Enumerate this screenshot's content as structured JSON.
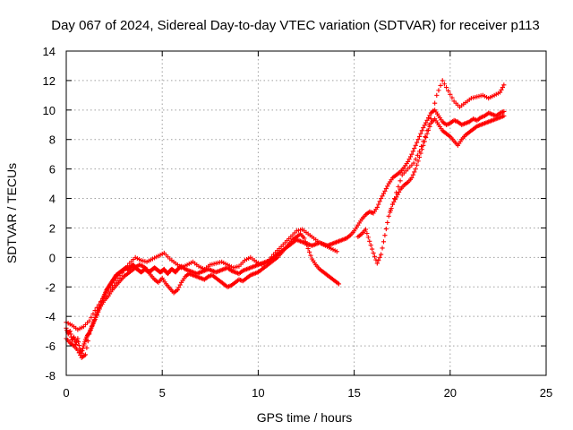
{
  "chart_data": {
    "type": "scatter",
    "title": "Day 067 of 2024, Sidereal Day-to-day VTEC variation (SDTVAR) for receiver p113",
    "xlabel": "GPS time / hours",
    "ylabel": "SDTVAR / TECUs",
    "xlim": [
      0,
      25
    ],
    "ylim": [
      -8,
      14
    ],
    "x_ticks": [
      "0",
      "5",
      "10",
      "15",
      "20",
      "25"
    ],
    "y_ticks": [
      "-8",
      "-6",
      "-4",
      "-2",
      "0",
      "2",
      "4",
      "6",
      "8",
      "10",
      "12",
      "14"
    ],
    "grid": true,
    "marker": "+",
    "color": "#ff0000",
    "series": [
      {
        "x": [
          0.0,
          0.1,
          0.2,
          0.3,
          0.4,
          0.5,
          0.6,
          0.7,
          0.8,
          0.9,
          1.0,
          1.1,
          1.2,
          1.3,
          1.4,
          1.5,
          1.6,
          1.7,
          1.8,
          1.9,
          2.0,
          2.1,
          2.2,
          2.3,
          2.4,
          2.5,
          2.6,
          2.7,
          2.8,
          2.9,
          3.0,
          3.1,
          3.2,
          3.3,
          3.4,
          3.5,
          3.6,
          3.7,
          3.8,
          3.9,
          4.0,
          4.1,
          4.2,
          4.3,
          4.4,
          4.5,
          4.6,
          4.7,
          4.8,
          4.9,
          5.0,
          5.1,
          5.2,
          5.3,
          5.4,
          5.5,
          5.6,
          5.7,
          5.8,
          5.9,
          6.0,
          6.2,
          6.4,
          6.6,
          6.8,
          7.0,
          7.2,
          7.4,
          7.6,
          7.8,
          8.0,
          8.2,
          8.4,
          8.6,
          8.8,
          9.0,
          9.2,
          9.4,
          9.6,
          9.8,
          10.0,
          10.2,
          10.4,
          10.6,
          10.8,
          11.0,
          11.2,
          11.4,
          11.6,
          11.8,
          12.0,
          12.2,
          12.4,
          12.6,
          12.8,
          13.0,
          13.2,
          13.4,
          13.6,
          13.8,
          14.0,
          14.2,
          14.4,
          14.6,
          14.8,
          15.0,
          15.2,
          15.4,
          15.6,
          15.8,
          16.0,
          16.2,
          16.4,
          16.6,
          16.8,
          17.0,
          17.2,
          17.4,
          17.6,
          17.8,
          18.0,
          18.2,
          18.4,
          18.6,
          18.8,
          19.0,
          19.2,
          19.4,
          19.6,
          19.8,
          20.0,
          20.2,
          20.4,
          20.6,
          20.8,
          21.0,
          21.2,
          21.4,
          21.6,
          21.8,
          22.0,
          22.2,
          22.4,
          22.6,
          22.8
        ],
        "y": [
          -4.8,
          -5.2,
          -5.0,
          -5.6,
          -5.4,
          -5.9,
          -5.5,
          -6.2,
          -6.5,
          -6.0,
          -5.6,
          -5.3,
          -5.1,
          -4.8,
          -4.5,
          -4.2,
          -3.8,
          -3.5,
          -3.2,
          -2.8,
          -2.5,
          -2.2,
          -2.0,
          -1.8,
          -1.6,
          -1.4,
          -1.2,
          -1.1,
          -1.0,
          -0.9,
          -0.8,
          -0.7,
          -0.8,
          -0.7,
          -0.6,
          -0.5,
          -0.7,
          -0.8,
          -0.9,
          -1.0,
          -0.9,
          -0.8,
          -0.9,
          -1.0,
          -0.9,
          -0.8,
          -0.7,
          -0.8,
          -0.9,
          -1.0,
          -0.9,
          -0.8,
          -1.0,
          -1.1,
          -0.9,
          -0.8,
          -0.9,
          -1.0,
          -0.8,
          -0.7,
          -0.6,
          -0.8,
          -0.9,
          -1.0,
          -1.1,
          -1.0,
          -0.9,
          -0.8,
          -0.9,
          -1.0,
          -0.9,
          -0.8,
          -0.7,
          -0.9,
          -1.0,
          -1.1,
          -0.9,
          -0.8,
          -0.7,
          -0.6,
          -0.5,
          -0.4,
          -0.3,
          -0.2,
          0.0,
          0.2,
          0.4,
          0.6,
          0.8,
          1.0,
          1.2,
          1.1,
          1.0,
          0.9,
          0.8,
          0.9,
          1.0,
          0.9,
          0.8,
          0.9,
          1.0,
          1.1,
          1.2,
          1.3,
          1.5,
          1.8,
          2.2,
          2.6,
          2.9,
          3.1,
          3.0,
          3.4,
          4.0,
          4.5,
          5.0,
          5.4,
          5.6,
          5.8,
          6.1,
          6.5,
          7.0,
          7.6,
          8.2,
          8.8,
          9.3,
          9.8,
          10.0,
          9.6,
          9.2,
          9.0,
          9.1,
          9.3,
          9.2,
          9.0,
          9.1,
          9.2,
          9.4,
          9.3,
          9.5,
          9.6,
          9.8,
          9.7,
          9.6,
          9.8,
          9.9
        ]
      },
      {
        "x": [
          0.0,
          0.2,
          0.4,
          0.6,
          0.8,
          1.0,
          1.2,
          1.4,
          1.6,
          1.8,
          2.0,
          2.2,
          2.4,
          2.6,
          2.8,
          3.0,
          3.2,
          3.4,
          3.6,
          3.8,
          4.0,
          4.2,
          4.4,
          4.6,
          4.8,
          5.0,
          5.2,
          5.4,
          5.6,
          5.8,
          6.0,
          6.2,
          6.4,
          6.6,
          6.8,
          7.0,
          7.2,
          7.4,
          7.6,
          7.8,
          8.0,
          8.2,
          8.4,
          8.6,
          8.8,
          9.0,
          9.2,
          9.4,
          9.6,
          9.8,
          10.0,
          10.2,
          10.4,
          10.6,
          10.8,
          11.0,
          11.2,
          11.4,
          11.6,
          11.8,
          12.0,
          12.2,
          12.4,
          12.6,
          12.8,
          13.0,
          13.2,
          13.4,
          13.6,
          13.8,
          14.0,
          14.2,
          15.2,
          15.4,
          15.6,
          15.8,
          16.0,
          16.2,
          16.4,
          16.6,
          16.8,
          17.0,
          17.2,
          17.4,
          17.6,
          17.8,
          18.0,
          18.2,
          18.4,
          18.6,
          18.8,
          19.0,
          19.2,
          19.4,
          19.6,
          19.8,
          20.0,
          20.2,
          20.4,
          20.6,
          20.8,
          21.0,
          21.2,
          21.4,
          21.6,
          21.8,
          22.0,
          22.2,
          22.4,
          22.6,
          22.8
        ],
        "y": [
          -5.5,
          -5.8,
          -6.0,
          -6.3,
          -6.8,
          -6.6,
          -5.2,
          -4.4,
          -3.9,
          -3.3,
          -2.9,
          -2.6,
          -2.2,
          -1.9,
          -1.6,
          -1.3,
          -1.1,
          -0.9,
          -0.7,
          -0.5,
          -0.6,
          -0.8,
          -1.2,
          -1.5,
          -1.7,
          -1.4,
          -1.8,
          -2.1,
          -2.4,
          -2.2,
          -1.7,
          -1.3,
          -1.1,
          -1.2,
          -1.3,
          -1.4,
          -1.5,
          -1.3,
          -1.2,
          -1.4,
          -1.6,
          -1.8,
          -2.0,
          -1.9,
          -1.7,
          -1.5,
          -1.6,
          -1.4,
          -1.2,
          -1.1,
          -1.0,
          -0.8,
          -0.6,
          -0.4,
          -0.2,
          0.0,
          0.3,
          0.6,
          0.9,
          1.2,
          1.4,
          1.6,
          1.3,
          0.6,
          -0.1,
          -0.5,
          -0.8,
          -1.0,
          -1.2,
          -1.4,
          -1.6,
          -1.8,
          1.4,
          1.6,
          1.9,
          1.1,
          0.3,
          -0.4,
          0.2,
          1.5,
          2.8,
          3.6,
          4.1,
          4.6,
          4.9,
          5.1,
          5.4,
          6.0,
          6.8,
          7.6,
          8.4,
          9.1,
          9.4,
          9.0,
          8.6,
          8.4,
          8.2,
          7.9,
          7.6,
          8.0,
          8.3,
          8.5,
          8.7,
          8.9,
          9.0,
          9.1,
          9.2,
          9.3,
          9.4,
          9.5,
          9.6
        ]
      },
      {
        "x": [
          0.0,
          0.3,
          0.6,
          0.9,
          1.2,
          1.5,
          1.8,
          2.1,
          2.4,
          2.7,
          3.0,
          3.3,
          3.6,
          3.9,
          4.2,
          4.5,
          4.8,
          5.1,
          5.4,
          5.7,
          6.0,
          6.3,
          6.6,
          6.9,
          7.2,
          7.5,
          7.8,
          8.1,
          8.4,
          8.7,
          9.0,
          9.3,
          9.6,
          9.9,
          10.2,
          10.5,
          10.8,
          11.1,
          11.4,
          11.7,
          12.0,
          12.3,
          12.6,
          12.9,
          13.2,
          13.5,
          13.8,
          14.1,
          16.9,
          17.2,
          17.5,
          17.8,
          18.1,
          18.4,
          18.7,
          19.0,
          19.3,
          19.6,
          19.9,
          20.2,
          20.5,
          20.8,
          21.1,
          21.4,
          21.7,
          22.0,
          22.3,
          22.6,
          22.8
        ],
        "y": [
          -4.4,
          -4.6,
          -4.9,
          -4.7,
          -4.3,
          -3.6,
          -3.0,
          -2.4,
          -1.9,
          -1.4,
          -0.9,
          -0.4,
          0.0,
          -0.2,
          -0.3,
          -0.1,
          0.1,
          0.3,
          -0.1,
          -0.4,
          -0.7,
          -0.5,
          -0.3,
          -0.6,
          -0.8,
          -0.5,
          -0.4,
          -0.3,
          -0.5,
          -0.7,
          -0.6,
          -0.2,
          0.0,
          -0.3,
          -0.5,
          -0.3,
          0.2,
          0.6,
          1.0,
          1.4,
          1.8,
          1.9,
          1.6,
          1.3,
          1.0,
          0.8,
          0.6,
          0.4,
          3.2,
          4.4,
          5.6,
          6.0,
          6.4,
          7.2,
          8.2,
          9.4,
          11.0,
          12.0,
          11.3,
          10.6,
          10.2,
          10.5,
          10.8,
          10.9,
          11.0,
          10.8,
          11.0,
          11.2,
          11.7
        ]
      }
    ]
  }
}
